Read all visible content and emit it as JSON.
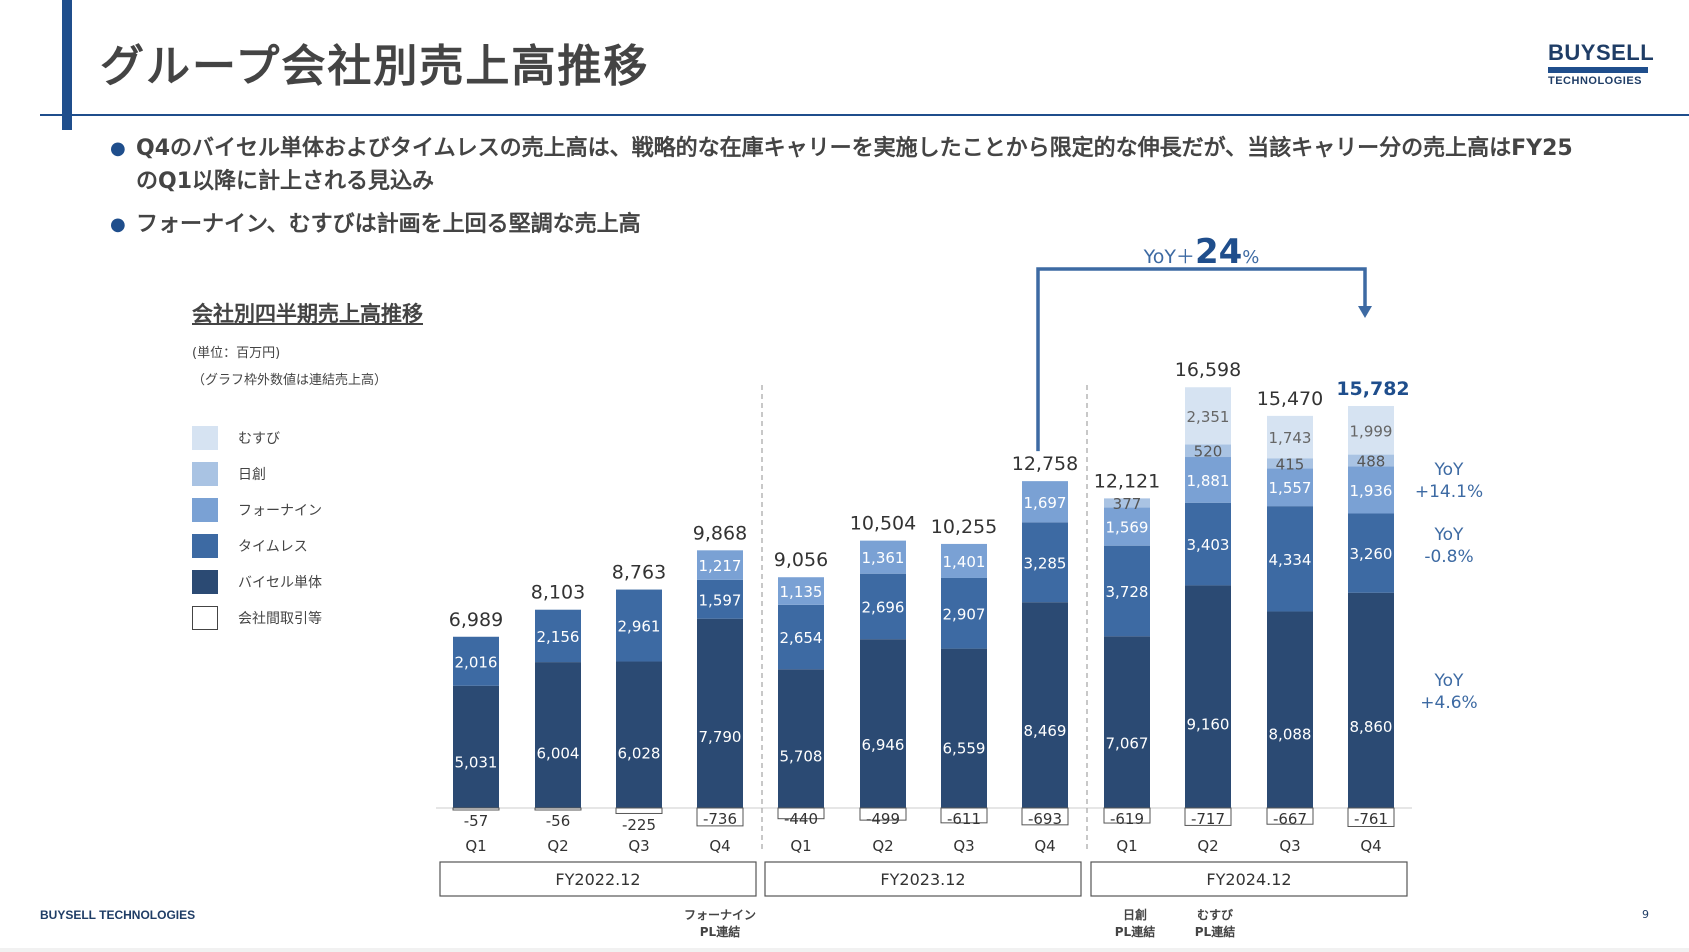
{
  "page": {
    "title": "グループ会社別売上高推移",
    "logo_top": "BUYSELL",
    "logo_bottom": "TECHNOLOGIES",
    "footer_company": "BUYSELL TECHNOLOGIES",
    "page_number": "9",
    "bullets": [
      "Q4のバイセル単体およびタイムレスの売上高は、戦略的な在庫キャリーを実施したことから限定的な伸長だが、当該キャリー分の売上高はFY25のQ1以降に計上される見込み",
      "フォーナイン、むすびは計画を上回る堅調な売上高"
    ],
    "chart_heading": "会社別四半期売上高推移",
    "unit_note": "(単位：百万円)",
    "total_note": "（グラフ枠外数値は連結売上高）"
  },
  "chart_data": {
    "type": "bar",
    "stacked": true,
    "x": [
      "Q1",
      "Q2",
      "Q3",
      "Q4",
      "Q1",
      "Q2",
      "Q3",
      "Q4",
      "Q1",
      "Q2",
      "Q3",
      "Q4"
    ],
    "fiscal_years": [
      {
        "label": "FY2022.12",
        "from": 0,
        "to": 3
      },
      {
        "label": "FY2023.12",
        "from": 4,
        "to": 7
      },
      {
        "label": "FY2024.12",
        "from": 8,
        "to": 11
      }
    ],
    "series": [
      {
        "name": "バイセル単体",
        "color": "#2b4a73",
        "label_color": "#ffffff",
        "values": [
          5031,
          6004,
          6028,
          7790,
          5708,
          6946,
          6559,
          8469,
          7067,
          9160,
          8088,
          8860
        ]
      },
      {
        "name": "タイムレス",
        "color": "#3d6aa3",
        "label_color": "#ffffff",
        "values": [
          2016,
          2156,
          2961,
          1597,
          2654,
          2696,
          2907,
          3285,
          3728,
          3403,
          4334,
          3260
        ]
      },
      {
        "name": "フォーナイン",
        "color": "#7aa1d4",
        "label_color": "#ffffff",
        "values": [
          null,
          null,
          null,
          1217,
          1135,
          1361,
          1401,
          1697,
          1569,
          1881,
          1557,
          1936
        ]
      },
      {
        "name": "日創",
        "color": "#a9c3e3",
        "label_color": "#555555",
        "values": [
          null,
          null,
          null,
          null,
          null,
          null,
          null,
          null,
          377,
          520,
          415,
          488
        ]
      },
      {
        "name": "むすび",
        "color": "#d6e3f2",
        "label_color": "#666666",
        "values": [
          null,
          null,
          null,
          null,
          null,
          null,
          null,
          null,
          null,
          2351,
          1743,
          1999
        ]
      },
      {
        "name": "会社間取引等",
        "color": "#ffffff",
        "label_color": "#333333",
        "values": [
          -57,
          -56,
          -225,
          -736,
          -440,
          -499,
          -611,
          -693,
          -619,
          -717,
          -667,
          -761
        ]
      }
    ],
    "totals": [
      "6,989",
      "8,103",
      "8,763",
      "9,868",
      "9,056",
      "10,504",
      "10,255",
      "12,758",
      "12,121",
      "16,598",
      "15,470",
      "15,782"
    ],
    "highlight_total_index": 11,
    "yoy_headline": {
      "prefix": "YoY＋",
      "value": "24",
      "suffix": "%"
    },
    "yoy_labels": [
      {
        "label": "YoY",
        "value": "+14.1%"
      },
      {
        "label": "YoY",
        "value": "-0.8%"
      },
      {
        "label": "YoY",
        "value": "+4.6%"
      }
    ],
    "annotations": [
      {
        "text": "フォーナイン",
        "text2": "PL連結"
      },
      {
        "text": "日創",
        "text2": "PL連結"
      },
      {
        "text": "むすび",
        "text2": "PL連結"
      }
    ],
    "accent_color": "#3d6aa3",
    "highlight_color": "#1f4e8c"
  }
}
